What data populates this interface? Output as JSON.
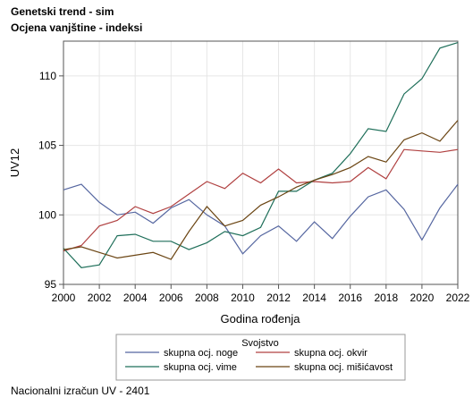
{
  "titles": {
    "line1": "Genetski trend - sim",
    "line2": "Ocjena vanjštine - indeksi"
  },
  "footnote": "Nacionalni izračun UV - 2401",
  "chart_data": {
    "type": "line",
    "xlabel": "Godina rođenja",
    "ylabel": "UV12",
    "xlim": [
      2000,
      2022
    ],
    "ylim": [
      95,
      112.5
    ],
    "xticks": [
      2000,
      2002,
      2004,
      2006,
      2008,
      2010,
      2012,
      2014,
      2016,
      2018,
      2020,
      2022
    ],
    "yticks": [
      95,
      100,
      105,
      110
    ],
    "grid": true,
    "legend": {
      "title": "Svojstvo",
      "placement": "bottom"
    },
    "x": [
      2000,
      2001,
      2002,
      2003,
      2004,
      2005,
      2006,
      2007,
      2008,
      2009,
      2010,
      2011,
      2012,
      2013,
      2014,
      2015,
      2016,
      2017,
      2018,
      2019,
      2020,
      2021,
      2022
    ],
    "series": [
      {
        "name": "skupna ocj. noge",
        "color": "#5566a0",
        "values": [
          101.8,
          102.2,
          100.9,
          100.0,
          100.2,
          99.4,
          100.5,
          101.1,
          100.0,
          99.2,
          97.2,
          98.5,
          99.2,
          98.1,
          99.5,
          98.3,
          99.9,
          101.3,
          101.8,
          100.4,
          98.2,
          100.5,
          102.2
        ]
      },
      {
        "name": "skupna ocj. okvir",
        "color": "#b04040",
        "values": [
          97.4,
          97.8,
          99.2,
          99.6,
          100.6,
          100.1,
          100.6,
          101.5,
          102.4,
          101.9,
          103.0,
          102.3,
          103.3,
          102.3,
          102.4,
          102.3,
          102.4,
          103.4,
          102.6,
          104.7,
          104.6,
          104.5,
          104.7
        ]
      },
      {
        "name": "skupna ocj. vime",
        "color": "#1f6f5a",
        "values": [
          97.6,
          96.2,
          96.4,
          98.5,
          98.6,
          98.1,
          98.1,
          97.5,
          98.0,
          98.8,
          98.5,
          99.1,
          101.7,
          101.7,
          102.5,
          103.0,
          104.4,
          106.2,
          106.0,
          108.7,
          109.8,
          112.0,
          112.4
        ]
      },
      {
        "name": "skupna ocj. mišićavost",
        "color": "#6b4513",
        "values": [
          97.5,
          97.7,
          97.3,
          96.9,
          97.1,
          97.3,
          96.8,
          98.8,
          100.6,
          99.2,
          99.6,
          100.7,
          101.3,
          102.0,
          102.5,
          102.9,
          103.4,
          104.2,
          103.8,
          105.4,
          105.9,
          105.3,
          106.8
        ]
      }
    ]
  }
}
